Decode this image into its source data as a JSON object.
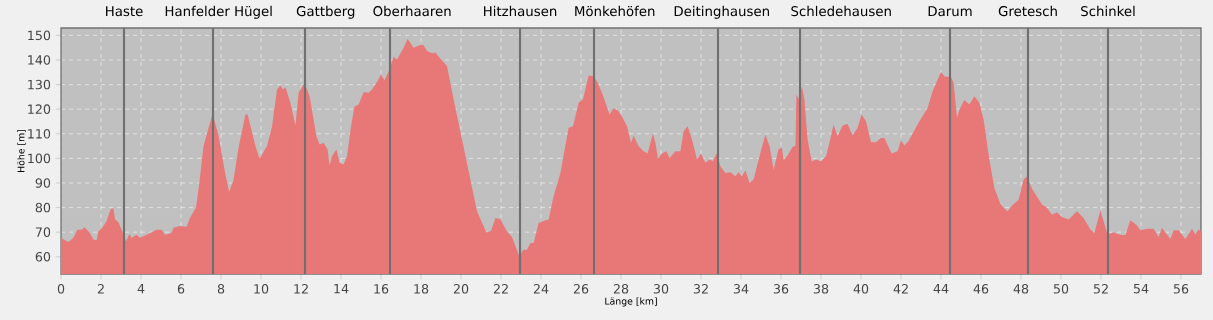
{
  "chart_data": {
    "type": "area",
    "xlabel": "Länge [km]",
    "ylabel": "Höhe [m]",
    "color": "#e87878",
    "grid": true,
    "xlim": [
      0,
      57
    ],
    "ylim": [
      53,
      153
    ],
    "xticks": [
      0,
      2,
      4,
      6,
      8,
      10,
      12,
      14,
      16,
      18,
      20,
      22,
      24,
      26,
      28,
      30,
      32,
      34,
      36,
      38,
      40,
      42,
      44,
      46,
      48,
      50,
      52,
      54,
      56
    ],
    "yticks": [
      60,
      70,
      80,
      90,
      100,
      110,
      120,
      130,
      140,
      150
    ],
    "x": [
      0,
      0.2,
      0.37,
      0.62,
      0.82,
      1.03,
      1.17,
      1.42,
      1.62,
      1.78,
      1.87,
      2.03,
      2.28,
      2.48,
      2.62,
      2.7,
      2.87,
      3.03,
      3.25,
      3.42,
      3.53,
      3.78,
      3.95,
      4.28,
      4.78,
      5.03,
      5.2,
      5.53,
      5.62,
      5.95,
      6.28,
      6.45,
      6.75,
      6.92,
      7.12,
      7.37,
      7.58,
      7.87,
      8.2,
      8.4,
      8.62,
      8.87,
      9.22,
      9.33,
      9.72,
      9.93,
      10.3,
      10.55,
      10.8,
      10.97,
      11.1,
      11.22,
      11.47,
      11.72,
      11.88,
      12.17,
      12.43,
      12.77,
      12.93,
      13.13,
      13.33,
      13.43,
      13.55,
      13.77,
      13.93,
      14.13,
      14.3,
      14.5,
      14.67,
      14.88,
      15.13,
      15.38,
      15.55,
      15.8,
      16.0,
      16.17,
      16.43,
      16.63,
      16.8,
      17.13,
      17.33,
      17.63,
      17.97,
      18.13,
      18.3,
      18.55,
      18.72,
      18.97,
      19.3,
      19.63,
      20.05,
      20.47,
      20.8,
      21.27,
      21.5,
      21.72,
      21.97,
      22.3,
      22.55,
      22.93,
      23.1,
      23.3,
      23.47,
      23.63,
      23.88,
      24.22,
      24.38,
      24.63,
      24.97,
      25.38,
      25.6,
      25.88,
      26.1,
      26.38,
      26.6,
      26.8,
      27.05,
      27.43,
      27.63,
      27.88,
      28.13,
      28.3,
      28.5,
      28.63,
      28.88,
      29.13,
      29.33,
      29.47,
      29.6,
      29.72,
      29.85,
      30.05,
      30.27,
      30.43,
      30.72,
      30.97,
      31.13,
      31.33,
      31.55,
      31.8,
      32.0,
      32.22,
      32.43,
      32.6,
      32.77,
      32.97,
      33.22,
      33.47,
      33.72,
      33.88,
      34.05,
      34.22,
      34.43,
      34.63,
      34.97,
      35.22,
      35.43,
      35.63,
      35.88,
      36.05,
      36.13,
      36.3,
      36.6,
      36.72,
      36.77,
      36.88,
      37.05,
      37.17,
      37.33,
      37.53,
      37.75,
      38.0,
      38.25,
      38.42,
      38.63,
      38.83,
      39.08,
      39.33,
      39.58,
      39.83,
      40.03,
      40.25,
      40.5,
      40.75,
      41.0,
      41.17,
      41.53,
      41.83,
      42.0,
      42.17,
      42.37,
      42.87,
      43.33,
      43.58,
      43.87,
      44.0,
      44.2,
      44.5,
      44.63,
      44.8,
      44.92,
      45.17,
      45.42,
      45.67,
      45.92,
      46.13,
      46.42,
      46.67,
      46.97,
      47.13,
      47.33,
      47.55,
      47.88,
      48.13,
      48.3,
      48.55,
      49.05,
      49.3,
      49.55,
      49.8,
      50.05,
      50.38,
      50.8,
      51.13,
      51.47,
      51.67,
      51.97,
      52.33,
      52.63,
      52.88,
      53.22,
      53.47,
      53.8,
      53.97,
      54.3,
      54.63,
      54.88,
      55.05,
      55.47,
      55.63,
      55.88,
      56.22,
      56.55,
      56.72,
      56.88,
      57.0
    ],
    "values": [
      67.7,
      66.7,
      66,
      67.7,
      71,
      71,
      72,
      70,
      67,
      66.7,
      70.4,
      71.4,
      74.5,
      79.3,
      79.7,
      75.2,
      74,
      71,
      66.3,
      69.3,
      67.7,
      69,
      67.7,
      69,
      71,
      71,
      69,
      69.7,
      71.8,
      72.5,
      72.2,
      75.9,
      80,
      90.3,
      104.7,
      112.2,
      118.1,
      109.5,
      94.4,
      86.4,
      91,
      104,
      117.8,
      117.8,
      105,
      99.8,
      105,
      113,
      128,
      129.6,
      128,
      129,
      122.6,
      113.4,
      126.7,
      130.7,
      125.3,
      109,
      105.6,
      106.3,
      103.6,
      97.1,
      100.9,
      103.6,
      98.2,
      97.5,
      100.9,
      113.1,
      121,
      121.9,
      126.9,
      126.7,
      128,
      131,
      134.1,
      131.8,
      136.2,
      141.3,
      140.2,
      145,
      148.6,
      145,
      146.1,
      146,
      143.6,
      142.7,
      143,
      140.5,
      137.5,
      124,
      107.7,
      91.4,
      78.5,
      69.9,
      70.6,
      75.8,
      75.3,
      70.3,
      68,
      59.9,
      62.9,
      62.9,
      65.6,
      65.6,
      73.7,
      74.8,
      75.1,
      84.6,
      94.1,
      112.4,
      113.1,
      122.6,
      124,
      133.7,
      133.4,
      131.4,
      126.7,
      117.8,
      120.5,
      119.2,
      115.8,
      113.1,
      106.3,
      109.3,
      104.9,
      102.9,
      102,
      106.3,
      110.1,
      106.3,
      99.8,
      102,
      102.9,
      100.2,
      102.9,
      102.9,
      111,
      113.1,
      107.7,
      99.5,
      102,
      98.2,
      99.5,
      98.8,
      102,
      96.8,
      94.1,
      94.4,
      92.7,
      94.4,
      92.7,
      95.2,
      90,
      91.4,
      102.3,
      109.7,
      104.9,
      95.4,
      103.8,
      104.3,
      99.3,
      100.9,
      104.9,
      104.9,
      126,
      124.2,
      129.1,
      124,
      107.7,
      98.8,
      99.5,
      98.8,
      100.9,
      106.3,
      113.8,
      109,
      113.4,
      114,
      109.3,
      112.4,
      117.8,
      115.1,
      106.6,
      106.6,
      108.3,
      108.3,
      102,
      102.9,
      107.4,
      105.2,
      107,
      114.4,
      120.5,
      127.3,
      132.8,
      135.1,
      133.2,
      133.2,
      130.7,
      116.5,
      119.9,
      123.7,
      121.9,
      125.3,
      122.6,
      115.8,
      99.5,
      88,
      81.5,
      79.9,
      78.5,
      80.8,
      83.2,
      91.4,
      92.7,
      87.6,
      81.2,
      79.9,
      77.1,
      78.1,
      76.2,
      75.1,
      78.5,
      75.8,
      71.1,
      69.7,
      78.9,
      69.1,
      70,
      69.1,
      68.7,
      74.8,
      72.7,
      70.8,
      71.4,
      71.4,
      68,
      71.8,
      67.2,
      70.8,
      70.8,
      67.2,
      71.4,
      69.1,
      71.1,
      70.4
    ],
    "ref_lines": [
      {
        "axis": "x",
        "value": 3.15,
        "label": "Haste",
        "color": "#707070"
      },
      {
        "axis": "x",
        "value": 7.6,
        "label": "Hanfelder Hügel",
        "color": "#707070"
      },
      {
        "axis": "x",
        "value": 12.2,
        "label": "Gattberg",
        "color": "#707070"
      },
      {
        "axis": "x",
        "value": 16.45,
        "label": "Oberhaaren",
        "color": "#707070"
      },
      {
        "axis": "x",
        "value": 22.95,
        "label": "Hitzhausen",
        "color": "#707070"
      },
      {
        "axis": "x",
        "value": 26.65,
        "label": "Mönkehöfen",
        "color": "#707070"
      },
      {
        "axis": "x",
        "value": 32.85,
        "label": "Deitinghausen",
        "color": "#707070"
      },
      {
        "axis": "x",
        "value": 36.95,
        "label": "Schledehausen",
        "color": "#707070"
      },
      {
        "axis": "x",
        "value": 44.45,
        "label": "Darum",
        "color": "#707070"
      },
      {
        "axis": "x",
        "value": 48.35,
        "label": "Gretesch",
        "color": "#707070"
      },
      {
        "axis": "x",
        "value": 52.35,
        "label": "Schinkel",
        "color": "#707070"
      }
    ]
  }
}
